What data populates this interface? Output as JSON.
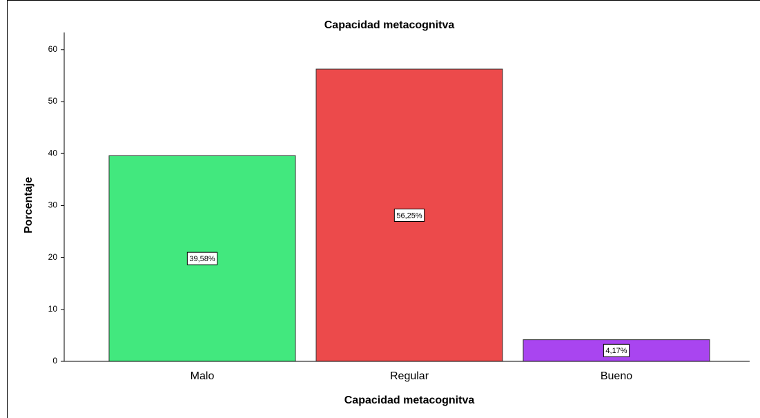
{
  "chart_data": {
    "type": "bar",
    "title": "Capacidad metacognitva",
    "x_label": "Capacidad metacognitva",
    "y_label": "Porcentaje",
    "categories": [
      "Malo",
      "Regular",
      "Bueno"
    ],
    "values": [
      39.58,
      56.25,
      4.17
    ],
    "value_labels": [
      "39,58%",
      "56,25%",
      "4,17%"
    ],
    "colors": [
      "#42e87e",
      "#ec4a4b",
      "#a945f0"
    ],
    "ylim": [
      0,
      63.3
    ],
    "yticks": [
      0,
      10,
      20,
      30,
      40,
      50,
      60
    ],
    "grid": false
  }
}
